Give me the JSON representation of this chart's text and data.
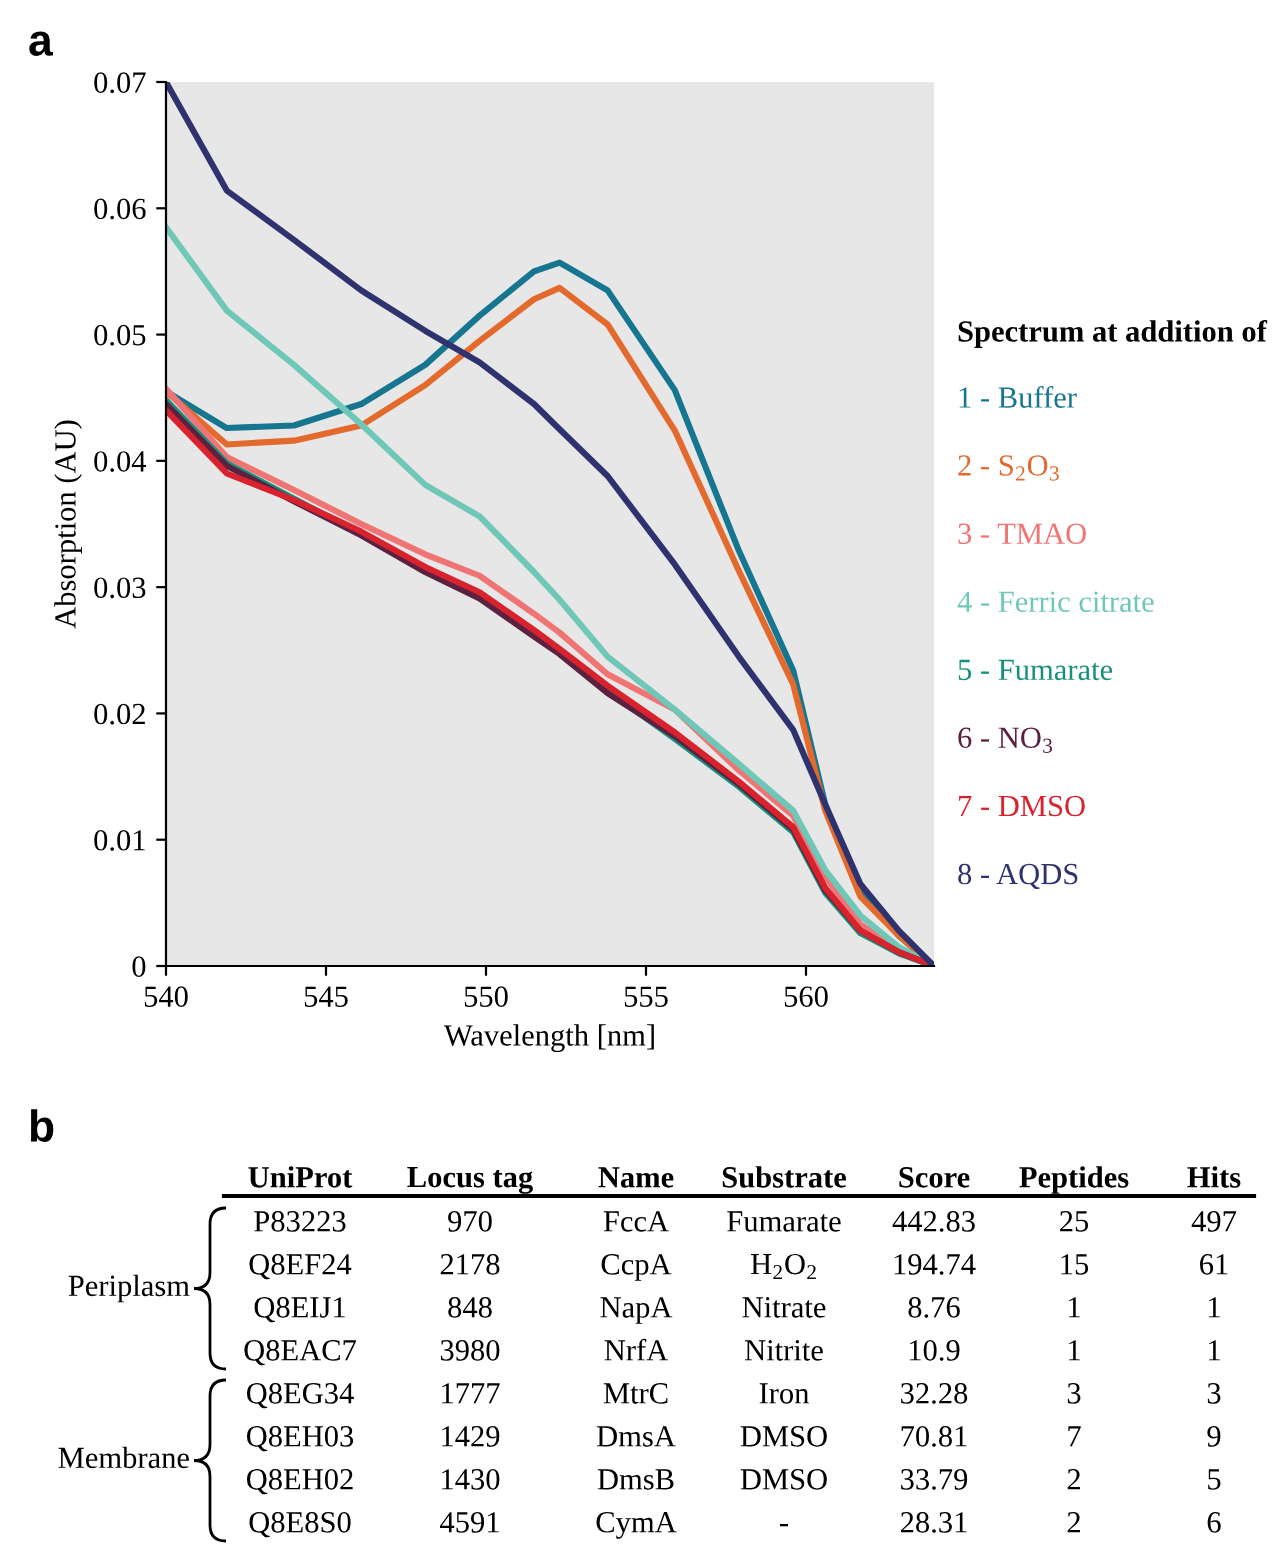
{
  "chart_data": [
    {
      "type": "line",
      "title": "a",
      "xlabel": "Wavelength [nm]",
      "ylabel": "Absorption (AU)",
      "legend_title": "Spectrum at addition of",
      "legend": "right",
      "grid": false,
      "marker": "none",
      "line_style": "solid",
      "x": [
        540,
        541.9,
        544,
        546.1,
        548.1,
        549.8,
        551.5,
        552.3,
        553.8,
        555.9,
        557.9,
        559.6,
        560.6,
        561.7,
        562.9,
        564
      ],
      "xlim": [
        540,
        564
      ],
      "xticks": [
        540,
        545,
        550,
        555,
        560
      ],
      "ylim": [
        0,
        0.07
      ],
      "yticks": [
        0,
        0.01,
        0.02,
        0.03,
        0.04,
        0.05,
        0.06,
        0.07
      ],
      "series": [
        {
          "name": "1 - Buffer",
          "color": "#16758f",
          "values": [
            0.0455,
            0.0426,
            0.0428,
            0.0445,
            0.0476,
            0.0515,
            0.055,
            0.0557,
            0.0535,
            0.0456,
            0.0329,
            0.0234,
            0.0128,
            0.006,
            0.0024,
            0
          ]
        },
        {
          "name": "2 - S$_{2}$O$_{3}$",
          "color": "#e3692c",
          "values": [
            0.0455,
            0.0413,
            0.0416,
            0.0428,
            0.046,
            0.0495,
            0.0528,
            0.0537,
            0.0508,
            0.0424,
            0.0313,
            0.0223,
            0.0123,
            0.0055,
            0.0024,
            0
          ]
        },
        {
          "name": "3 - TMAO",
          "color": "#f07474",
          "values": [
            0.0457,
            0.0403,
            0.0377,
            0.035,
            0.0326,
            0.0309,
            0.0279,
            0.0264,
            0.0231,
            0.0203,
            0.0155,
            0.0119,
            0.0071,
            0.0033,
            0.0012,
            0
          ]
        },
        {
          "name": "4 - Ferric citrate",
          "color": "#6fc7b7",
          "values": [
            0.0585,
            0.0519,
            0.0476,
            0.0429,
            0.0381,
            0.0356,
            0.0312,
            0.029,
            0.0245,
            0.0203,
            0.016,
            0.0123,
            0.0076,
            0.004,
            0.0015,
            0
          ]
        },
        {
          "name": "5 - Fumarate",
          "color": "#16907a",
          "values": [
            0.0448,
            0.0398,
            0.037,
            0.0342,
            0.0313,
            0.0292,
            0.0262,
            0.0248,
            0.0218,
            0.018,
            0.0142,
            0.0106,
            0.0058,
            0.0026,
            0.001,
            0
          ]
        },
        {
          "name": "6 - NO$_{3}$",
          "color": "#5a2140",
          "values": [
            0.0445,
            0.0396,
            0.0368,
            0.0341,
            0.0312,
            0.0291,
            0.0261,
            0.0247,
            0.0216,
            0.0182,
            0.0144,
            0.0108,
            0.006,
            0.0028,
            0.0011,
            0
          ]
        },
        {
          "name": "7 - DMSO",
          "color": "#d8232e",
          "values": [
            0.044,
            0.039,
            0.0369,
            0.0344,
            0.0316,
            0.0296,
            0.0266,
            0.0251,
            0.0222,
            0.0185,
            0.0146,
            0.011,
            0.0062,
            0.0028,
            0.0011,
            0
          ]
        },
        {
          "name": "8 - AQDS",
          "color": "#2e3370",
          "values": [
            0.07,
            0.0614,
            0.0575,
            0.0535,
            0.0503,
            0.0478,
            0.0445,
            0.0425,
            0.0388,
            0.0318,
            0.0245,
            0.0187,
            0.0128,
            0.0065,
            0.0028,
            0
          ]
        }
      ]
    },
    {
      "type": "other",
      "title": "b",
      "categories": [
        "UniProt",
        "Locus tag",
        "Name",
        "Substrate",
        "Score",
        "Peptides",
        "Hits"
      ],
      "y_categories": [
        "Periplasm",
        null,
        null,
        null,
        "Membrane",
        null,
        null,
        null
      ],
      "cell_labels": [
        [
          "P83223",
          "970",
          "FccA",
          "Fumarate",
          "442.83",
          "25",
          "497"
        ],
        [
          "Q8EF24",
          "2178",
          "CcpA",
          "H$_{2}$O$_{2}$",
          "194.74",
          "15",
          "61"
        ],
        [
          "Q8EIJ1",
          "848",
          "NapA",
          "Nitrate",
          "8.76",
          "1",
          "1"
        ],
        [
          "Q8EAC7",
          "3980",
          "NrfA",
          "Nitrite",
          "10.9",
          "1",
          "1"
        ],
        [
          "Q8EG34",
          "1777",
          "MtrC",
          "Iron",
          "32.28",
          "3",
          "3"
        ],
        [
          "Q8EH03",
          "1429",
          "DmsA",
          "DMSO",
          "70.81",
          "7",
          "9"
        ],
        [
          "Q8EH02",
          "1430",
          "DmsB",
          "DMSO",
          "33.79",
          "2",
          "5"
        ],
        [
          "Q8E8S0",
          "4591",
          "CymA",
          "-",
          "28.31",
          "2",
          "6"
        ]
      ]
    }
  ]
}
